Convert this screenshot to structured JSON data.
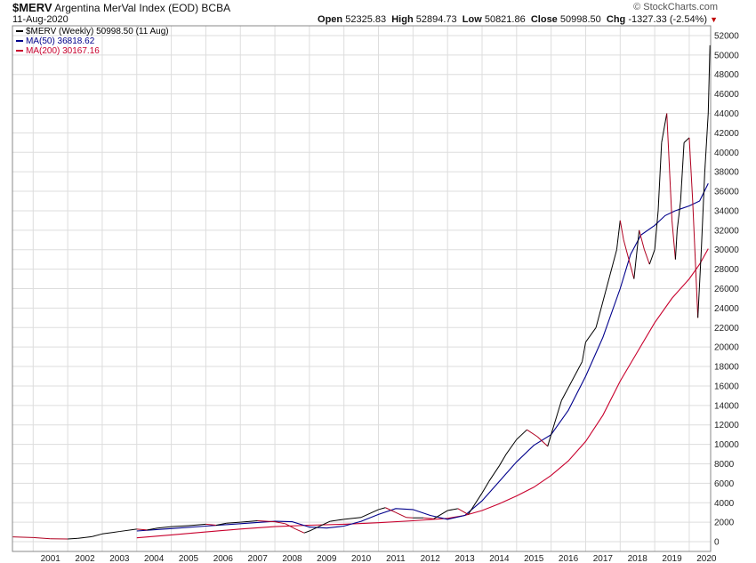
{
  "header": {
    "symbol": "$MERV",
    "name": "Argentina MerVal Index (EOD)",
    "exchange": "BCBA",
    "date": "11-Aug-2020",
    "brand": "© StockCharts.com",
    "open_label": "Open",
    "open": "52325.83",
    "high_label": "High",
    "high": "52894.73",
    "low_label": "Low",
    "low": "50821.86",
    "close_label": "Close",
    "close": "50998.50",
    "chg_label": "Chg",
    "chg": "-1327.33 (-2.54%)",
    "chg_arrow": "▼"
  },
  "chart_data": {
    "type": "line",
    "title": "$MERV Argentina MerVal Index (EOD) BCBA",
    "xlabel": "",
    "ylabel": "",
    "x_range": [
      2000.4,
      2020.62
    ],
    "ylim": [
      -1000,
      53000
    ],
    "yticks": [
      0,
      2000,
      4000,
      6000,
      8000,
      10000,
      12000,
      14000,
      16000,
      18000,
      20000,
      22000,
      24000,
      26000,
      28000,
      30000,
      32000,
      34000,
      36000,
      38000,
      40000,
      42000,
      44000,
      46000,
      48000,
      50000,
      52000
    ],
    "x_tick_labels": [
      "2001",
      "2002",
      "2003",
      "2004",
      "2005",
      "2006",
      "2007",
      "2008",
      "2009",
      "2010",
      "2011",
      "2012",
      "2013",
      "2014",
      "2015",
      "2016",
      "2017",
      "2018",
      "2019",
      "2020"
    ],
    "legend": [
      {
        "name": "$MERV (Weekly) 50998.50 (11 Aug)",
        "color": "#000000"
      },
      {
        "name": "MA(50) 36818.62",
        "color": "#00008b"
      },
      {
        "name": "MA(200) 30167.16",
        "color": "#c8002d"
      }
    ],
    "legend_position": "top-left",
    "grid": true,
    "series": [
      {
        "name": "$MERV (Weekly)",
        "color": "#000000",
        "down_color": "#b00020",
        "x": [
          2000.4,
          2001.0,
          2001.5,
          2002.0,
          2002.3,
          2002.7,
          2003.0,
          2003.5,
          2004.0,
          2004.3,
          2004.6,
          2005.0,
          2005.5,
          2006.0,
          2006.3,
          2006.6,
          2007.0,
          2007.5,
          2008.0,
          2008.3,
          2008.6,
          2008.85,
          2009.0,
          2009.3,
          2009.6,
          2010.0,
          2010.5,
          2011.0,
          2011.2,
          2011.5,
          2011.8,
          2012.0,
          2012.3,
          2012.6,
          2013.0,
          2013.3,
          2013.6,
          2014.0,
          2014.2,
          2014.5,
          2014.7,
          2015.0,
          2015.3,
          2015.6,
          2015.9,
          2016.0,
          2016.3,
          2016.6,
          2016.9,
          2017.0,
          2017.3,
          2017.6,
          2017.9,
          2018.0,
          2018.1,
          2018.25,
          2018.4,
          2018.55,
          2018.7,
          2018.85,
          2019.0,
          2019.1,
          2019.2,
          2019.35,
          2019.5,
          2019.6,
          2019.65,
          2019.75,
          2019.85,
          2020.0,
          2020.1,
          2020.2,
          2020.25,
          2020.35,
          2020.45,
          2020.55,
          2020.6
        ],
        "values": [
          500,
          430,
          300,
          280,
          350,
          520,
          800,
          1050,
          1300,
          1200,
          1400,
          1550,
          1650,
          1800,
          1700,
          1900,
          2000,
          2150,
          2050,
          1850,
          1300,
          900,
          1100,
          1600,
          2100,
          2300,
          2500,
          3300,
          3500,
          3000,
          2500,
          2450,
          2450,
          2350,
          3200,
          3400,
          2800,
          5000,
          6200,
          7800,
          9000,
          10500,
          11500,
          10800,
          9800,
          11000,
          14500,
          16500,
          18500,
          20500,
          22000,
          26000,
          30000,
          33000,
          31000,
          29000,
          27000,
          32000,
          30000,
          28500,
          30000,
          34000,
          41000,
          44000,
          33000,
          29000,
          32000,
          35000,
          41000,
          41500,
          35000,
          27000,
          23000,
          30000,
          38000,
          44000,
          51000
        ]
      },
      {
        "name": "MA(50)",
        "color": "#00008b",
        "x": [
          2004.0,
          2005.0,
          2006.0,
          2007.0,
          2008.0,
          2008.5,
          2009.0,
          2009.5,
          2010.0,
          2010.5,
          2011.0,
          2011.5,
          2012.0,
          2012.5,
          2013.0,
          2013.5,
          2014.0,
          2014.5,
          2015.0,
          2015.5,
          2016.0,
          2016.5,
          2017.0,
          2017.5,
          2018.0,
          2018.3,
          2018.6,
          2019.0,
          2019.3,
          2019.6,
          2020.0,
          2020.3,
          2020.55
        ],
        "values": [
          1100,
          1350,
          1600,
          1850,
          2100,
          2050,
          1500,
          1400,
          1600,
          2100,
          2800,
          3400,
          3300,
          2700,
          2300,
          2700,
          4200,
          6200,
          8200,
          9900,
          11000,
          13500,
          17000,
          21000,
          26000,
          29500,
          31500,
          32500,
          33500,
          34000,
          34500,
          35000,
          36800
        ]
      },
      {
        "name": "MA(200)",
        "color": "#c8002d",
        "x": [
          2004.0,
          2005.0,
          2006.0,
          2007.0,
          2008.0,
          2009.0,
          2010.0,
          2011.0,
          2012.0,
          2013.0,
          2013.5,
          2014.0,
          2014.5,
          2015.0,
          2015.5,
          2016.0,
          2016.5,
          2017.0,
          2017.5,
          2018.0,
          2018.5,
          2019.0,
          2019.5,
          2020.0,
          2020.3,
          2020.55
        ],
        "values": [
          400,
          700,
          1000,
          1300,
          1550,
          1700,
          1800,
          1950,
          2150,
          2400,
          2700,
          3200,
          3900,
          4700,
          5600,
          6800,
          8300,
          10300,
          13000,
          16500,
          19500,
          22500,
          25000,
          27000,
          28500,
          30100
        ]
      }
    ]
  }
}
